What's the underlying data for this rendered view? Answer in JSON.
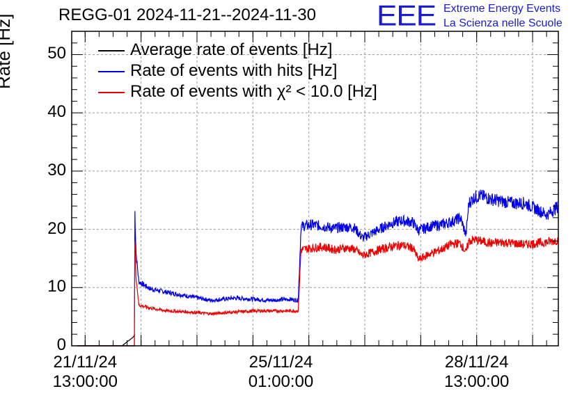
{
  "title": "REGG-01 2024-11-21--2024-11-30",
  "logo": {
    "mark": "EEE",
    "line1": "Extreme Energy Events",
    "line2": "La Scienza nelle Scuole",
    "color": "#1a1adb"
  },
  "chart_data": {
    "type": "line",
    "ylabel": "Rate [Hz]",
    "xlabel": "",
    "ylim": [
      0,
      54
    ],
    "yticks": [
      0,
      10,
      20,
      30,
      40,
      50
    ],
    "x_unit": "days since 2024-11-21 00:00",
    "xlim": [
      21.3,
      30.0
    ],
    "xtick_labels": [
      {
        "date": "21/11/24",
        "time": "13:00:00",
        "x": 21.54
      },
      {
        "date": "25/11/24",
        "time": "01:00:00",
        "x": 25.04
      },
      {
        "date": "28/11/24",
        "time": "13:00:00",
        "x": 28.54
      }
    ],
    "grid": true,
    "legend_position": "top-left",
    "series": [
      {
        "name": "Average rate of events [Hz]",
        "color": "#000000",
        "x": [
          21.4,
          22.2,
          22.4,
          22.43
        ],
        "y": [
          0,
          0,
          1.5,
          2
        ]
      },
      {
        "name": "Rate of events with hits [Hz]",
        "color": "#0000ee",
        "x": [
          21.4,
          22.42,
          22.43,
          22.45,
          22.5,
          22.7,
          23.0,
          23.4,
          23.8,
          24.2,
          24.6,
          24.8,
          25.2,
          25.35,
          25.4,
          25.6,
          25.8,
          26.0,
          26.2,
          26.35,
          26.5,
          26.8,
          27.0,
          27.2,
          27.4,
          27.5,
          27.7,
          27.9,
          28.1,
          28.25,
          28.35,
          28.4,
          28.5,
          28.6,
          28.8,
          29.0,
          29.2,
          29.4,
          29.6,
          29.8,
          30.0
        ],
        "y": [
          0,
          0,
          23,
          16,
          11,
          9.8,
          9.2,
          8.5,
          7.8,
          8.2,
          8.0,
          7.8,
          8.0,
          7.8,
          20.5,
          20.8,
          20.5,
          20.2,
          20.4,
          20.3,
          18.5,
          20.0,
          21.0,
          21.5,
          21.2,
          19.8,
          20.5,
          20.8,
          21.3,
          22.0,
          19.0,
          24.5,
          25.5,
          25.8,
          25.2,
          24.8,
          24.5,
          24.5,
          23.5,
          22.5,
          24.0
        ]
      },
      {
        "name": "Rate of events with χ² < 10.0 [Hz]",
        "color": "#ee0000",
        "x": [
          21.4,
          22.42,
          22.43,
          22.45,
          22.5,
          22.7,
          23.0,
          23.4,
          23.8,
          24.2,
          24.6,
          24.8,
          25.2,
          25.35,
          25.4,
          25.6,
          25.8,
          26.0,
          26.2,
          26.35,
          26.5,
          26.8,
          27.0,
          27.2,
          27.4,
          27.5,
          27.7,
          27.9,
          28.1,
          28.25,
          28.35,
          28.4,
          28.5,
          28.6,
          28.8,
          29.0,
          29.2,
          29.4,
          29.6,
          29.8,
          30.0
        ],
        "y": [
          0,
          0,
          18,
          12,
          7.0,
          6.5,
          6.0,
          5.8,
          5.5,
          5.8,
          6.0,
          6.0,
          6.0,
          6.0,
          16.5,
          16.8,
          17.0,
          16.5,
          16.8,
          16.6,
          15.5,
          16.5,
          17.0,
          17.3,
          16.8,
          14.8,
          15.8,
          16.5,
          17.5,
          17.6,
          16.0,
          18.0,
          18.2,
          18.0,
          17.6,
          17.8,
          17.6,
          17.4,
          17.6,
          17.8,
          18.2
        ]
      }
    ]
  }
}
